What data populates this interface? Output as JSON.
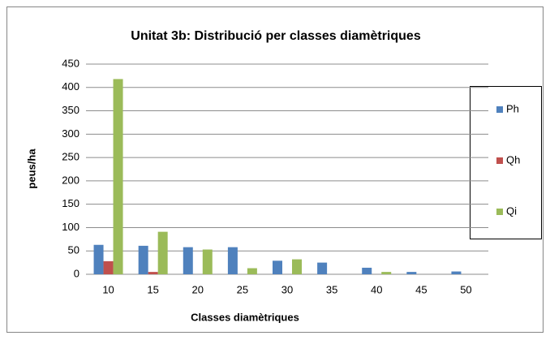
{
  "chart_data": {
    "type": "bar",
    "title": "Unitat 3b: Distribució per classes diamètriques",
    "x_label": "Classes diamètriques",
    "y_label": "peus/ha",
    "categories": [
      10,
      15,
      20,
      25,
      30,
      35,
      40,
      45,
      50
    ],
    "series": [
      {
        "name": "Ph",
        "color": "#4f81bd",
        "values": [
          63,
          61,
          58,
          58,
          29,
          25,
          14,
          5,
          6
        ]
      },
      {
        "name": "Qh",
        "color": "#c0504d",
        "values": [
          28,
          5,
          0,
          0,
          0,
          0,
          0,
          0,
          0
        ]
      },
      {
        "name": "Qi",
        "color": "#9bbb59",
        "values": [
          418,
          91,
          53,
          13,
          32,
          0,
          5,
          0,
          0
        ]
      }
    ],
    "ylim": [
      0,
      450
    ],
    "yticks": [
      0,
      50,
      100,
      150,
      200,
      250,
      300,
      350,
      400,
      450
    ],
    "grid": true,
    "legend": "right"
  }
}
